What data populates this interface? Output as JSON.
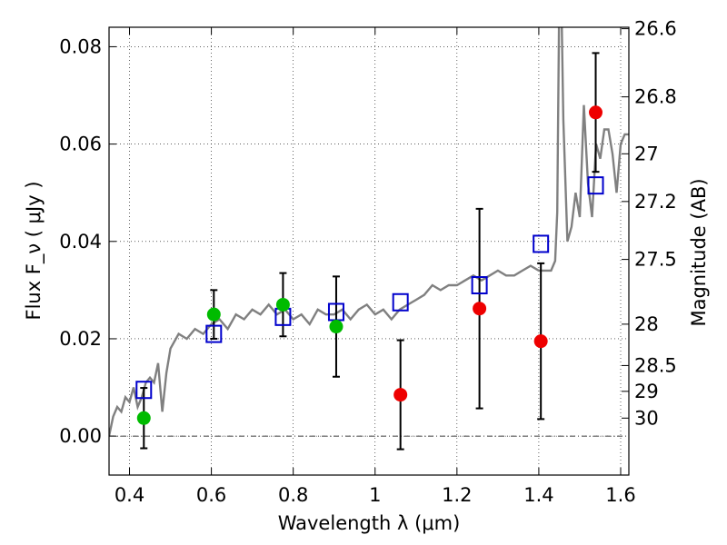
{
  "chart_data": {
    "type": "scatter",
    "xlabel": "Wavelength  λ (μm)",
    "ylabel": "Flux  F_ν  ( μJy )",
    "ylabel_right": "Magnitude (AB)",
    "xlim": [
      0.35,
      1.62
    ],
    "ylim": [
      -0.008,
      0.084
    ],
    "grid": true,
    "x_ticks": [
      0.4,
      0.6,
      0.8,
      1.0,
      1.2,
      1.4,
      1.6
    ],
    "x_tick_labels": [
      "0.4",
      "0.6",
      "0.8",
      "1",
      "1.2",
      "1.4",
      "1.6"
    ],
    "y_ticks": [
      0.0,
      0.02,
      0.04,
      0.06,
      0.08
    ],
    "y_tick_labels": [
      "0.00",
      "0.02",
      "0.04",
      "0.06",
      "0.08"
    ],
    "right_ticks": [
      {
        "label": "26.6",
        "flux": 0.0837
      },
      {
        "label": "26.8",
        "flux": 0.0697
      },
      {
        "label": "27",
        "flux": 0.058
      },
      {
        "label": "27.2",
        "flux": 0.0482
      },
      {
        "label": "27.5",
        "flux": 0.0363
      },
      {
        "label": "28",
        "flux": 0.023
      },
      {
        "label": "28.5",
        "flux": 0.0145
      },
      {
        "label": "29",
        "flux": 0.0092
      },
      {
        "label": "30",
        "flux": 0.0037
      }
    ],
    "series": [
      {
        "kind": "model_spectrum",
        "color": "#808080",
        "x": [
          0.35,
          0.36,
          0.37,
          0.38,
          0.39,
          0.4,
          0.41,
          0.42,
          0.43,
          0.44,
          0.45,
          0.46,
          0.47,
          0.48,
          0.49,
          0.5,
          0.52,
          0.54,
          0.56,
          0.58,
          0.6,
          0.62,
          0.64,
          0.66,
          0.68,
          0.7,
          0.72,
          0.74,
          0.76,
          0.78,
          0.8,
          0.82,
          0.84,
          0.86,
          0.88,
          0.9,
          0.92,
          0.94,
          0.96,
          0.98,
          1.0,
          1.02,
          1.04,
          1.06,
          1.08,
          1.1,
          1.12,
          1.14,
          1.16,
          1.18,
          1.2,
          1.22,
          1.24,
          1.26,
          1.28,
          1.3,
          1.32,
          1.34,
          1.36,
          1.38,
          1.4,
          1.42,
          1.43,
          1.44,
          1.445,
          1.45,
          1.455,
          1.46,
          1.47,
          1.48,
          1.49,
          1.5,
          1.51,
          1.52,
          1.53,
          1.54,
          1.55,
          1.56,
          1.57,
          1.58,
          1.59,
          1.6,
          1.61,
          1.62
        ],
        "y": [
          0.0,
          0.004,
          0.006,
          0.005,
          0.008,
          0.007,
          0.01,
          0.006,
          0.008,
          0.011,
          0.012,
          0.011,
          0.015,
          0.005,
          0.013,
          0.018,
          0.021,
          0.02,
          0.022,
          0.021,
          0.023,
          0.024,
          0.022,
          0.025,
          0.024,
          0.026,
          0.025,
          0.027,
          0.025,
          0.026,
          0.024,
          0.025,
          0.023,
          0.026,
          0.025,
          0.025,
          0.026,
          0.024,
          0.026,
          0.027,
          0.025,
          0.026,
          0.024,
          0.026,
          0.027,
          0.028,
          0.029,
          0.031,
          0.03,
          0.031,
          0.031,
          0.032,
          0.033,
          0.032,
          0.033,
          0.034,
          0.033,
          0.033,
          0.034,
          0.035,
          0.034,
          0.034,
          0.034,
          0.036,
          0.046,
          0.09,
          0.09,
          0.065,
          0.04,
          0.043,
          0.05,
          0.045,
          0.068,
          0.052,
          0.045,
          0.06,
          0.057,
          0.063,
          0.063,
          0.058,
          0.05,
          0.06,
          0.062,
          0.062
        ]
      },
      {
        "kind": "model_photometry",
        "marker": "open-square",
        "color": "#0000cc",
        "x": [
          0.435,
          0.606,
          0.775,
          0.905,
          1.062,
          1.255,
          1.405,
          1.539
        ],
        "y": [
          0.0095,
          0.021,
          0.0245,
          0.0255,
          0.0275,
          0.031,
          0.0395,
          0.0515
        ]
      },
      {
        "kind": "observed_detection",
        "marker": "filled-circle",
        "color": "#00bb00",
        "x": [
          0.435,
          0.606,
          0.775,
          0.905
        ],
        "y": [
          0.0037,
          0.025,
          0.027,
          0.0225
        ],
        "yerr": [
          0.0062,
          0.005,
          0.0065,
          0.0103
        ]
      },
      {
        "kind": "observed_limit",
        "marker": "filled-circle",
        "color": "#ee0000",
        "x": [
          1.062,
          1.255,
          1.405,
          1.539
        ],
        "y": [
          0.0085,
          0.0262,
          0.0195,
          0.0665
        ],
        "yerr": [
          0.0112,
          0.0205,
          0.016,
          0.0122
        ]
      }
    ]
  }
}
